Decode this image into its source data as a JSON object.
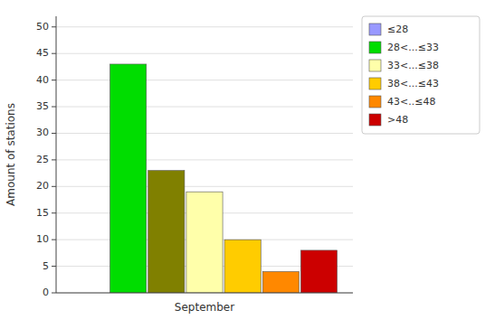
{
  "chart_data": {
    "type": "bar",
    "y_label": "Amount of stations",
    "categories": [
      "September"
    ],
    "series": [
      {
        "name": "≤28",
        "color": "#9999ff",
        "values": [
          0
        ]
      },
      {
        "name": "28<...≤33",
        "color": "#00dd00",
        "values": [
          43
        ]
      },
      {
        "color": "#808000",
        "values": [
          23
        ]
      },
      {
        "name": "33<...≤38",
        "color": "#ffffaa",
        "values": [
          19
        ]
      },
      {
        "name": "38<...≤43",
        "color": "#ffcc00",
        "values": [
          10
        ]
      },
      {
        "name": "43<..≤48",
        "color": "#ff8800",
        "values": [
          4
        ]
      },
      {
        "name": ">48",
        "color": "#cc0000",
        "values": [
          8
        ]
      }
    ],
    "ylim": [
      0,
      52
    ],
    "yticks": [
      0,
      5,
      10,
      15,
      20,
      25,
      30,
      35,
      40,
      45,
      50
    ],
    "grid": true,
    "legend": "upper right"
  }
}
